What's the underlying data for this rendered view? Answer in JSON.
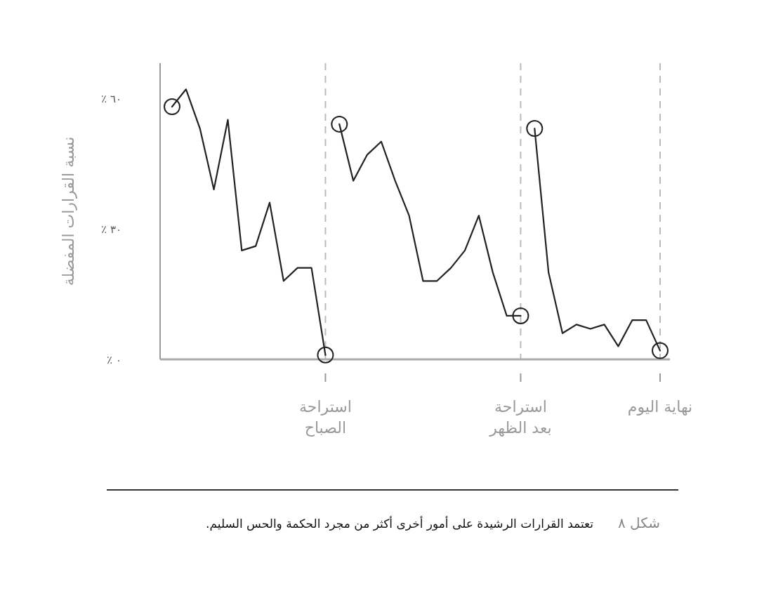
{
  "chart_data": {
    "type": "line",
    "ylabel": "نسبة القرارات المفضلة",
    "categories": [
      null,
      null,
      null,
      null,
      null,
      null,
      null,
      null,
      null,
      null,
      null,
      "استراحة\nالصباح",
      null,
      null,
      null,
      null,
      null,
      null,
      null,
      null,
      null,
      null,
      null,
      null,
      null,
      "استراحة\nبعد الظهر",
      null,
      null,
      null,
      null,
      null,
      null,
      null,
      null,
      null,
      "نهاية اليوم"
    ],
    "ylim": [
      0,
      68
    ],
    "yticks": [
      {
        "value": 0,
        "label": "٪ ٠"
      },
      {
        "value": 30,
        "label": "٪ ٣٠"
      },
      {
        "value": 60,
        "label": "٪ ٦٠"
      }
    ],
    "series": [
      {
        "color": "#222222",
        "values": [
          58,
          62,
          53,
          39,
          55,
          25,
          26,
          36,
          18,
          21,
          21,
          1,
          null,
          null,
          null,
          null,
          null,
          null,
          null,
          null,
          null,
          null,
          null,
          null,
          null,
          null,
          null,
          null,
          null,
          null,
          null,
          null,
          null,
          null,
          null,
          null
        ]
      },
      {
        "color": "#222222",
        "values": [
          null,
          null,
          null,
          null,
          null,
          null,
          null,
          null,
          null,
          null,
          null,
          null,
          54,
          41,
          47,
          50,
          41,
          33,
          18,
          18,
          21,
          25,
          33,
          20,
          10,
          10,
          null,
          null,
          null,
          null,
          null,
          null,
          null,
          null,
          null,
          null
        ]
      },
      {
        "color": "#222222",
        "values": [
          null,
          null,
          null,
          null,
          null,
          null,
          null,
          null,
          null,
          null,
          null,
          null,
          null,
          null,
          null,
          null,
          null,
          null,
          null,
          null,
          null,
          null,
          null,
          null,
          null,
          null,
          53,
          20,
          6,
          8,
          7,
          8,
          3,
          9,
          9,
          2
        ]
      },
      {
        "type": "scatter",
        "marker": "circle",
        "color": "#222222",
        "values": [
          58,
          null,
          null,
          null,
          null,
          null,
          null,
          null,
          null,
          null,
          null,
          1,
          54,
          null,
          null,
          null,
          null,
          null,
          null,
          null,
          null,
          null,
          null,
          null,
          null,
          10,
          53,
          null,
          null,
          null,
          null,
          null,
          null,
          null,
          null,
          2
        ]
      }
    ],
    "marker": "none",
    "line_style": "solid",
    "grid": "x",
    "annotations": [
      "تعتمد القرارات الرشيدة على أمور أخرى أكثر من مجرد الحكمة والحس السليم.",
      "شكل ٨"
    ]
  }
}
